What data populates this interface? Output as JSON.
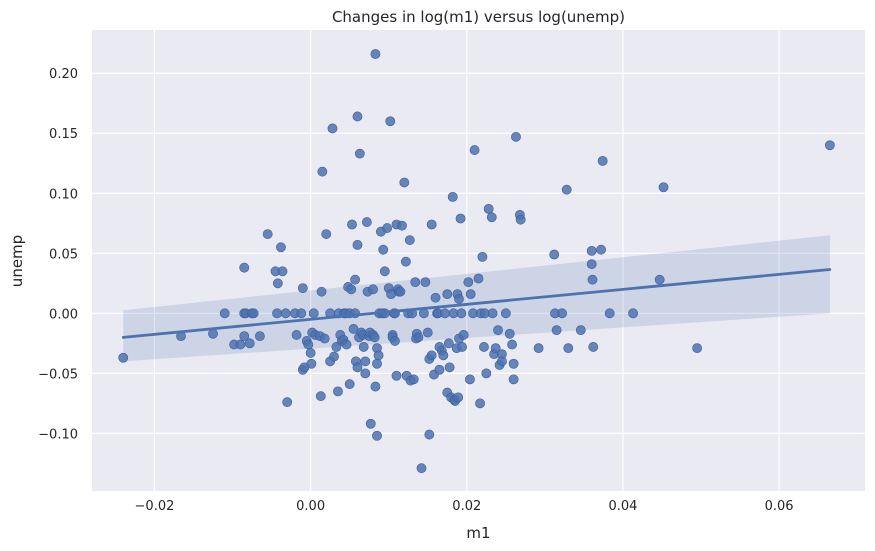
{
  "chart_data": {
    "type": "scatter",
    "title": "Changes in log(m1) versus log(unemp)",
    "xlabel": "m1",
    "ylabel": "unemp",
    "xlim": [
      -0.028,
      0.071
    ],
    "ylim": [
      -0.148,
      0.236
    ],
    "x_ticks": [
      -0.02,
      0.0,
      0.02,
      0.04,
      0.06
    ],
    "x_tick_labels": [
      "−0.02",
      "0.00",
      "0.02",
      "0.04",
      "0.06"
    ],
    "y_ticks": [
      -0.1,
      -0.05,
      0.0,
      0.05,
      0.1,
      0.15,
      0.2
    ],
    "y_tick_labels": [
      "−0.10",
      "−0.05",
      "0.00",
      "0.05",
      "0.10",
      "0.15",
      "0.20"
    ],
    "grid": true,
    "style": "seaborn-darkgrid",
    "colors": {
      "point": "#4c72b0",
      "line": "#4c72b0",
      "band": "#4c72b0",
      "panel": "#eaeaf2",
      "grid": "#ffffff"
    },
    "regression": {
      "x": [
        -0.024,
        0.0665
      ],
      "y": [
        -0.02,
        0.0365
      ],
      "ci_upper": [
        0.0025,
        0.065
      ],
      "ci_lower": [
        -0.04,
        0.0
      ]
    },
    "points": [
      [
        -0.024,
        -0.037
      ],
      [
        -0.0166,
        -0.019
      ],
      [
        -0.0125,
        -0.017
      ],
      [
        -0.011,
        0.0
      ],
      [
        -0.0098,
        -0.026
      ],
      [
        -0.009,
        -0.026
      ],
      [
        -0.0085,
        0.038
      ],
      [
        -0.0085,
        -0.019
      ],
      [
        -0.0085,
        0.0
      ],
      [
        -0.0083,
        0.0
      ],
      [
        -0.0078,
        -0.025
      ],
      [
        -0.0075,
        0.0
      ],
      [
        -0.0073,
        0.0
      ],
      [
        -0.0065,
        -0.019
      ],
      [
        -0.0055,
        0.066
      ],
      [
        -0.0045,
        0.035
      ],
      [
        -0.0043,
        0.0
      ],
      [
        -0.0042,
        0.025
      ],
      [
        -0.0038,
        0.055
      ],
      [
        -0.0036,
        0.035
      ],
      [
        -0.0032,
        0.0
      ],
      [
        -0.003,
        -0.074
      ],
      [
        -0.002,
        0.0
      ],
      [
        -0.0018,
        -0.018
      ],
      [
        -0.0012,
        0.0
      ],
      [
        -0.001,
        0.021
      ],
      [
        -0.001,
        -0.047
      ],
      [
        -0.0008,
        -0.045
      ],
      [
        -0.0005,
        -0.023
      ],
      [
        -0.0003,
        -0.026
      ],
      [
        0.0,
        -0.033
      ],
      [
        0.0001,
        -0.042
      ],
      [
        0.0002,
        -0.016
      ],
      [
        0.0004,
        0.0
      ],
      [
        0.0006,
        -0.018
      ],
      [
        0.0012,
        -0.019
      ],
      [
        0.0013,
        -0.069
      ],
      [
        0.0014,
        0.018
      ],
      [
        0.0015,
        0.118
      ],
      [
        0.0018,
        -0.021
      ],
      [
        0.002,
        0.066
      ],
      [
        0.0025,
        0.0
      ],
      [
        0.0025,
        -0.04
      ],
      [
        0.0028,
        0.154
      ],
      [
        0.003,
        -0.036
      ],
      [
        0.0033,
        -0.028
      ],
      [
        0.0035,
        -0.065
      ],
      [
        0.0036,
        0.0
      ],
      [
        0.0038,
        -0.018
      ],
      [
        0.004,
        -0.023
      ],
      [
        0.0042,
        -0.022
      ],
      [
        0.0043,
        0.0
      ],
      [
        0.0045,
        0.0
      ],
      [
        0.0046,
        -0.026
      ],
      [
        0.0048,
        0.022
      ],
      [
        0.005,
        0.0
      ],
      [
        0.005,
        -0.059
      ],
      [
        0.0052,
        0.02
      ],
      [
        0.0053,
        0.074
      ],
      [
        0.0055,
        -0.013
      ],
      [
        0.0057,
        0.0
      ],
      [
        0.0057,
        0.028
      ],
      [
        0.0058,
        -0.04
      ],
      [
        0.006,
        0.164
      ],
      [
        0.006,
        0.057
      ],
      [
        0.006,
        -0.045
      ],
      [
        0.0062,
        -0.02
      ],
      [
        0.0063,
        0.133
      ],
      [
        0.0065,
        -0.016
      ],
      [
        0.0067,
        -0.018
      ],
      [
        0.0068,
        -0.028
      ],
      [
        0.007,
        -0.04
      ],
      [
        0.007,
        -0.05
      ],
      [
        0.0072,
        0.076
      ],
      [
        0.0073,
        0.018
      ],
      [
        0.0075,
        -0.019
      ],
      [
        0.0076,
        -0.016
      ],
      [
        0.0077,
        -0.092
      ],
      [
        0.008,
        0.02
      ],
      [
        0.008,
        -0.018
      ],
      [
        0.0082,
        -0.02
      ],
      [
        0.0083,
        0.216
      ],
      [
        0.0083,
        -0.061
      ],
      [
        0.0085,
        -0.042
      ],
      [
        0.0085,
        -0.029
      ],
      [
        0.0085,
        -0.102
      ],
      [
        0.0087,
        -0.035
      ],
      [
        0.0088,
        0.0
      ],
      [
        0.009,
        0.068
      ],
      [
        0.0092,
        0.0
      ],
      [
        0.0093,
        0.053
      ],
      [
        0.0095,
        0.035
      ],
      [
        0.0095,
        0.0
      ],
      [
        0.0098,
        0.071
      ],
      [
        0.01,
        0.021
      ],
      [
        0.0102,
        0.16
      ],
      [
        0.0103,
        0.016
      ],
      [
        0.0105,
        -0.018
      ],
      [
        0.0105,
        -0.02
      ],
      [
        0.0107,
        0.0
      ],
      [
        0.0108,
        -0.023
      ],
      [
        0.0108,
        0.0
      ],
      [
        0.011,
        0.074
      ],
      [
        0.011,
        -0.052
      ],
      [
        0.0112,
        0.02
      ],
      [
        0.0113,
        0.018
      ],
      [
        0.0115,
        0.018
      ],
      [
        0.0117,
        0.073
      ],
      [
        0.012,
        0.109
      ],
      [
        0.0122,
        0.043
      ],
      [
        0.0123,
        -0.052
      ],
      [
        0.0125,
        0.0
      ],
      [
        0.0127,
        0.061
      ],
      [
        0.0128,
        -0.056
      ],
      [
        0.013,
        0.0
      ],
      [
        0.0132,
        -0.055
      ],
      [
        0.0134,
        0.026
      ],
      [
        0.0135,
        -0.021
      ],
      [
        0.0136,
        -0.017
      ],
      [
        0.0138,
        -0.02
      ],
      [
        0.0142,
        -0.129
      ],
      [
        0.0145,
        0.0
      ],
      [
        0.0147,
        0.026
      ],
      [
        0.015,
        -0.016
      ],
      [
        0.0152,
        -0.038
      ],
      [
        0.0152,
        -0.101
      ],
      [
        0.0155,
        0.074
      ],
      [
        0.0155,
        -0.035
      ],
      [
        0.0158,
        -0.051
      ],
      [
        0.016,
        0.013
      ],
      [
        0.0162,
        0.0
      ],
      [
        0.0163,
        0.0
      ],
      [
        0.0165,
        -0.047
      ],
      [
        0.0165,
        -0.028
      ],
      [
        0.0168,
        -0.031
      ],
      [
        0.017,
        -0.035
      ],
      [
        0.0172,
        0.0
      ],
      [
        0.0175,
        0.016
      ],
      [
        0.0175,
        -0.066
      ],
      [
        0.0177,
        -0.025
      ],
      [
        0.0178,
        -0.045
      ],
      [
        0.018,
        -0.07
      ],
      [
        0.0182,
        0.097
      ],
      [
        0.0183,
        0.0
      ],
      [
        0.0184,
        -0.072
      ],
      [
        0.0185,
        -0.073
      ],
      [
        0.0187,
        -0.029
      ],
      [
        0.0188,
        0.016
      ],
      [
        0.0189,
        -0.07
      ],
      [
        0.019,
        0.012
      ],
      [
        0.019,
        -0.021
      ],
      [
        0.0192,
        0.079
      ],
      [
        0.0193,
        0.0
      ],
      [
        0.0194,
        -0.028
      ],
      [
        0.0196,
        -0.018
      ],
      [
        0.0202,
        0.026
      ],
      [
        0.0204,
        -0.055
      ],
      [
        0.0205,
        0.016
      ],
      [
        0.0208,
        0.0
      ],
      [
        0.021,
        0.136
      ],
      [
        0.0215,
        0.029
      ],
      [
        0.0217,
        -0.075
      ],
      [
        0.0218,
        0.0
      ],
      [
        0.022,
        0.047
      ],
      [
        0.0222,
        -0.028
      ],
      [
        0.0223,
        0.0
      ],
      [
        0.0225,
        -0.05
      ],
      [
        0.0228,
        0.087
      ],
      [
        0.0232,
        0.08
      ],
      [
        0.0233,
        0.0
      ],
      [
        0.0235,
        -0.034
      ],
      [
        0.0237,
        -0.029
      ],
      [
        0.024,
        -0.014
      ],
      [
        0.0242,
        -0.043
      ],
      [
        0.0245,
        -0.034
      ],
      [
        0.0245,
        -0.04
      ],
      [
        0.025,
        0.0
      ],
      [
        0.0255,
        -0.017
      ],
      [
        0.0258,
        -0.026
      ],
      [
        0.026,
        -0.042
      ],
      [
        0.026,
        -0.055
      ],
      [
        0.0263,
        0.147
      ],
      [
        0.0268,
        0.082
      ],
      [
        0.0269,
        0.078
      ],
      [
        0.0292,
        -0.029
      ],
      [
        0.0312,
        0.049
      ],
      [
        0.0313,
        0.0
      ],
      [
        0.0315,
        -0.014
      ],
      [
        0.0322,
        0.0
      ],
      [
        0.0328,
        0.103
      ],
      [
        0.033,
        -0.029
      ],
      [
        0.0346,
        -0.014
      ],
      [
        0.036,
        0.041
      ],
      [
        0.036,
        0.052
      ],
      [
        0.0361,
        0.028
      ],
      [
        0.0362,
        -0.028
      ],
      [
        0.0372,
        0.053
      ],
      [
        0.0374,
        0.127
      ],
      [
        0.0383,
        0.0
      ],
      [
        0.0413,
        0.0
      ],
      [
        0.0447,
        0.028
      ],
      [
        0.0452,
        0.105
      ],
      [
        0.0495,
        -0.029
      ],
      [
        0.0665,
        0.14
      ]
    ]
  }
}
